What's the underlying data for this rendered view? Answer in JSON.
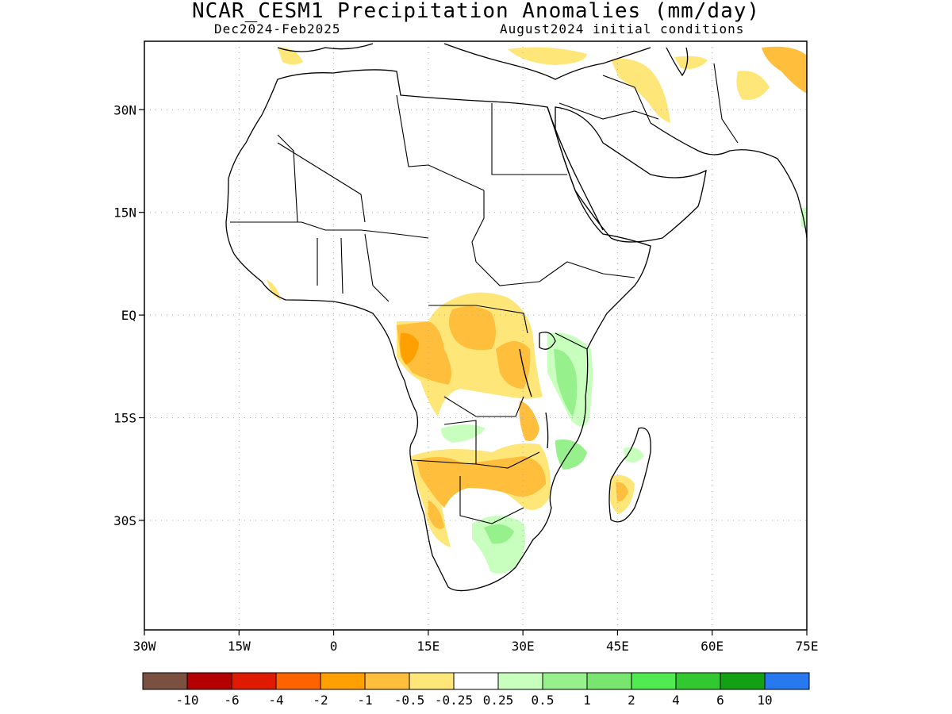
{
  "title": "NCAR_CESM1 Precipitation Anomalies (mm/day)",
  "subtitle_left": "Dec2024-Feb2025",
  "subtitle_right": "August2024 initial conditions",
  "map": {
    "lon_range": [
      -30,
      75
    ],
    "lat_range": [
      -46,
      40
    ],
    "lon_ticks": [
      {
        "value": -30,
        "label": "30W"
      },
      {
        "value": -15,
        "label": "15W"
      },
      {
        "value": 0,
        "label": "0"
      },
      {
        "value": 15,
        "label": "15E"
      },
      {
        "value": 30,
        "label": "30E"
      },
      {
        "value": 45,
        "label": "45E"
      },
      {
        "value": 60,
        "label": "60E"
      },
      {
        "value": 75,
        "label": "75E"
      }
    ],
    "lat_ticks": [
      {
        "value": 30,
        "label": "30N"
      },
      {
        "value": 15,
        "label": "15N"
      },
      {
        "value": 0,
        "label": "EQ"
      },
      {
        "value": -15,
        "label": "15S"
      },
      {
        "value": -30,
        "label": "30S"
      }
    ],
    "grid": "dotted"
  },
  "colorbar": {
    "colors": [
      "#7a5040",
      "#b40000",
      "#e01a00",
      "#ff6400",
      "#ffa000",
      "#ffbe3c",
      "#ffe678",
      "#ffffff",
      "#c8ffbe",
      "#96f08c",
      "#78e66e",
      "#50eb50",
      "#32c832",
      "#14a014",
      "#2878f0"
    ],
    "labels": [
      "-10",
      "-6",
      "-4",
      "-2",
      "-1",
      "-0.5",
      "-0.25",
      "0.25",
      "0.5",
      "1",
      "2",
      "4",
      "6",
      "10"
    ]
  },
  "anomalies": [
    {
      "category": "-0.25",
      "color": "#ffe678",
      "region": "Central Africa (Congo basin)"
    },
    {
      "category": "-0.5",
      "color": "#ffbe3c",
      "region": "Gabon / Congo coast"
    },
    {
      "category": "-1",
      "color": "#ffa000",
      "region": "Gabon coast core"
    },
    {
      "category": "-0.5",
      "color": "#ffbe3c",
      "region": "Angola / Zambia / Zimbabwe band"
    },
    {
      "category": "-0.5",
      "color": "#ffbe3c",
      "region": "Namibia coast"
    },
    {
      "category": "-0.5",
      "color": "#ffbe3c",
      "region": "Madagascar"
    },
    {
      "category": "-0.25",
      "color": "#ffe678",
      "region": "Middle East / Iran / Afghanistan"
    },
    {
      "category": "0.25",
      "color": "#c8ffbe",
      "region": "East Africa (Kenya / Tanzania)"
    },
    {
      "category": "0.5",
      "color": "#96f08c",
      "region": "Tanzania coast"
    },
    {
      "category": "0.25",
      "color": "#c8ffbe",
      "region": "South Africa"
    },
    {
      "category": "0.25",
      "color": "#c8ffbe",
      "region": "Mozambique"
    },
    {
      "category": "0.25",
      "color": "#c8ffbe",
      "region": "Angola interior"
    }
  ]
}
